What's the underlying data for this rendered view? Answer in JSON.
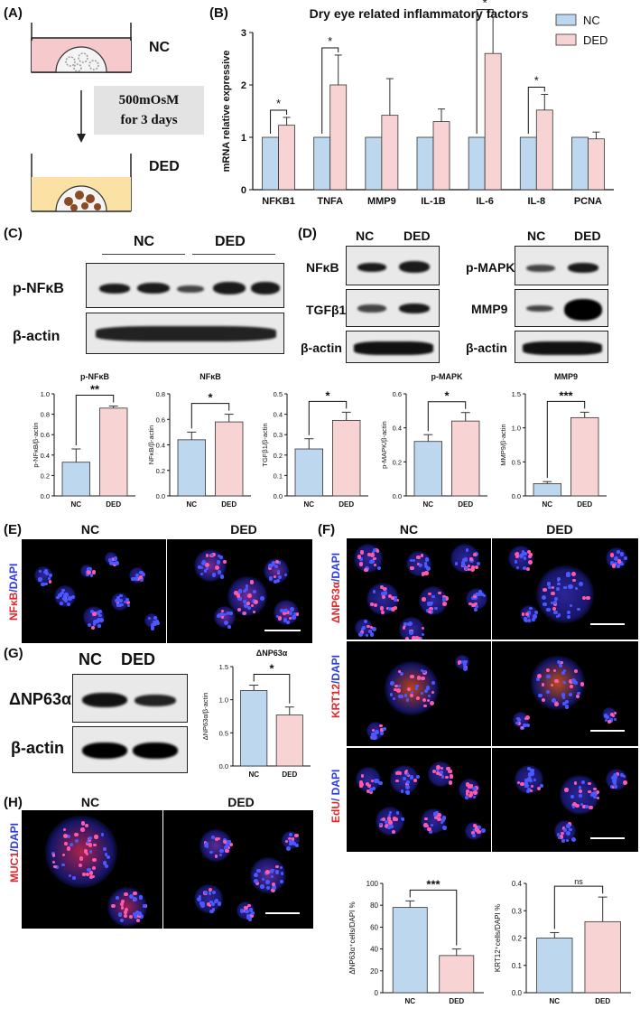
{
  "panels": {
    "A": {
      "label": "(A)",
      "nc": "NC",
      "ded": "DED",
      "treatment": "500mOsM\nfor 3 days"
    },
    "B": {
      "label": "(B)"
    },
    "C": {
      "label": "(C)",
      "nc": "NC",
      "ded": "DED",
      "row1": "p-NFκB",
      "row2": "β-actin"
    },
    "D": {
      "label": "(D)",
      "nc1": "NC",
      "ded1": "DED",
      "nc2": "NC",
      "ded2": "DED",
      "rows_left": [
        "NFκB",
        "TGFβ1",
        "β-actin"
      ],
      "rows_right": [
        "p-MAPK",
        "MMP9",
        "β-actin"
      ]
    },
    "E": {
      "label": "(E)",
      "nc": "NC",
      "ded": "DED",
      "stain_red": "NFκB",
      "stain_blue": "/DAPI"
    },
    "F": {
      "label": "(F)",
      "nc": "NC",
      "ded": "DED",
      "stains": [
        {
          "red": "ΔNP63α",
          "blue": "/DAPI"
        },
        {
          "red": "KRT12",
          "blue": "/DAPI"
        },
        {
          "red": "EdU",
          "blue": "/ DAPI"
        }
      ]
    },
    "G": {
      "label": "(G)",
      "nc": "NC",
      "ded": "DED",
      "row1": "ΔNP63α",
      "row2": "β-actin"
    },
    "H": {
      "label": "(H)",
      "nc": "NC",
      "ded": "DED",
      "stain_red": "MUC1",
      "stain_blue": "/DAPI"
    }
  },
  "chart_data": [
    {
      "id": "B",
      "type": "bar",
      "title": "Dry eye related inflammatory factors",
      "ylabel": "mRNA relative expressive",
      "ylim": [
        0,
        3
      ],
      "yticks": [
        0,
        1,
        2,
        3
      ],
      "categories": [
        "NFKB1",
        "TNFA",
        "MMP9",
        "IL-1B",
        "IL-6",
        "IL-8",
        "PCNA"
      ],
      "series": [
        {
          "name": "NC",
          "color": "#bdd7ee",
          "values": [
            1,
            1,
            1,
            1,
            1,
            1,
            1
          ],
          "errors": [
            0,
            0,
            0,
            0,
            0,
            0,
            0
          ]
        },
        {
          "name": "DED",
          "color": "#f8d3d3",
          "values": [
            1.23,
            2.0,
            1.42,
            1.3,
            2.6,
            1.52,
            0.97
          ],
          "errors": [
            0.15,
            0.57,
            0.7,
            0.24,
            0.7,
            0.3,
            0.13
          ]
        }
      ],
      "significance": [
        "*",
        "*",
        "",
        "",
        "*",
        "*",
        ""
      ],
      "legend": "top-right"
    },
    {
      "id": "C1",
      "type": "bar",
      "title": "p-NFκB",
      "ylabel": "p-NFκB/β-actin",
      "ylim": [
        0,
        1.0
      ],
      "yticks": [
        "0.0",
        "0.2",
        "0.4",
        "0.6",
        "0.8",
        "1.0"
      ],
      "categories": [
        "NC",
        "DED"
      ],
      "values": [
        0.33,
        0.86
      ],
      "errors": [
        0.13,
        0.02
      ],
      "significance": "**"
    },
    {
      "id": "C2",
      "type": "bar",
      "title": "NFκB",
      "ylabel": "NFκB/β-actin",
      "ylim": [
        0,
        0.8
      ],
      "yticks": [
        "0.0",
        "0.2",
        "0.4",
        "0.6",
        "0.8"
      ],
      "categories": [
        "NC",
        "DED"
      ],
      "values": [
        0.44,
        0.58
      ],
      "errors": [
        0.06,
        0.06
      ],
      "significance": "*"
    },
    {
      "id": "D1",
      "type": "bar",
      "title": "",
      "ylabel": "TGFβ1/β-actin",
      "ylim": [
        0,
        0.5
      ],
      "yticks": [
        "0.0",
        "0.1",
        "0.2",
        "0.3",
        "0.4",
        "0.5"
      ],
      "categories": [
        "NC",
        "DED"
      ],
      "values": [
        0.23,
        0.37
      ],
      "errors": [
        0.05,
        0.04
      ],
      "significance": "*"
    },
    {
      "id": "D2",
      "type": "bar",
      "title": "p-MAPK",
      "ylabel": "p-MAPK/β-actin",
      "ylim": [
        0,
        0.6
      ],
      "yticks": [
        "0.0",
        "0.2",
        "0.4",
        "0.6"
      ],
      "categories": [
        "NC",
        "DED"
      ],
      "values": [
        0.32,
        0.44
      ],
      "errors": [
        0.04,
        0.05
      ],
      "significance": "*"
    },
    {
      "id": "D3",
      "type": "bar",
      "title": "MMP9",
      "ylabel": "MMP9/β-actin",
      "ylim": [
        0,
        1.5
      ],
      "yticks": [
        "0.0",
        "0.5",
        "1.0",
        "1.5"
      ],
      "categories": [
        "NC",
        "DED"
      ],
      "values": [
        0.18,
        1.15
      ],
      "errors": [
        0.03,
        0.08
      ],
      "significance": "***"
    },
    {
      "id": "G",
      "type": "bar",
      "title": "ΔNP63α",
      "ylabel": "ΔNP63α/β-actin",
      "ylim": [
        0,
        1.5
      ],
      "yticks": [
        "0.0",
        "0.5",
        "1.0",
        "1.5"
      ],
      "categories": [
        "NC",
        "DED"
      ],
      "values": [
        1.14,
        0.77
      ],
      "errors": [
        0.08,
        0.12
      ],
      "significance": "*"
    },
    {
      "id": "F1",
      "type": "bar",
      "title": "",
      "ylabel": "ΔNP63α⁺cells/DAPI %",
      "ylim": [
        0,
        100
      ],
      "yticks": [
        "0",
        "20",
        "40",
        "60",
        "80",
        "100"
      ],
      "categories": [
        "NC",
        "DED"
      ],
      "values": [
        78,
        34
      ],
      "errors": [
        6,
        6
      ],
      "significance": "***"
    },
    {
      "id": "F2",
      "type": "bar",
      "title": "",
      "ylabel": "KRT12⁺cells/DAPI %",
      "ylim": [
        0,
        0.4
      ],
      "yticks": [
        "0.0",
        "0.1",
        "0.2",
        "0.3",
        "0.4"
      ],
      "categories": [
        "NC",
        "DED"
      ],
      "values": [
        0.2,
        0.26
      ],
      "errors": [
        0.02,
        0.09
      ],
      "significance": "ns"
    }
  ]
}
